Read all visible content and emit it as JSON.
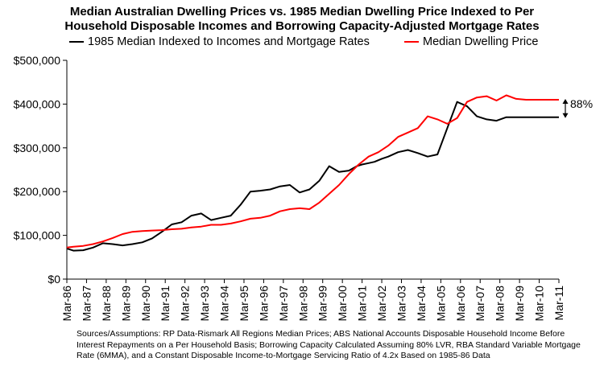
{
  "chart_data": {
    "type": "line",
    "title": "Median Australian Dwelling Prices vs. 1985 Median Dwelling Price Indexed to Per Household Disposable Incomes and Borrowing Capacity-Adjusted Mortgage Rates",
    "title_lines": [
      "Median Australian Dwelling Prices vs. 1985 Median Dwelling Price Indexed to Per",
      "Household Disposable Incomes and Borrowing Capacity-Adjusted Mortgage Rates"
    ],
    "xlabel": "",
    "ylabel": "",
    "ylim": [
      0,
      500000
    ],
    "xlim": [
      1986.17,
      2011.17
    ],
    "y_ticks": [
      0,
      100000,
      200000,
      300000,
      400000,
      500000
    ],
    "y_tick_labels": [
      "$0",
      "$100,000",
      "$200,000",
      "$300,000",
      "$400,000",
      "$500,000"
    ],
    "x_ticks": [
      1986.17,
      1987.17,
      1988.17,
      1989.17,
      1990.17,
      1991.17,
      1992.17,
      1993.17,
      1994.17,
      1995.17,
      1996.17,
      1997.17,
      1998.17,
      1999.17,
      2000.17,
      2001.17,
      2002.17,
      2003.17,
      2004.17,
      2005.17,
      2006.17,
      2007.17,
      2008.17,
      2009.17,
      2010.17,
      2011.17
    ],
    "x_tick_labels": [
      "Mar-86",
      "Mar-87",
      "Mar-88",
      "Mar-89",
      "Mar-90",
      "Mar-91",
      "Mar-92",
      "Mar-93",
      "Mar-94",
      "Mar-95",
      "Mar-96",
      "Mar-97",
      "Mar-98",
      "Mar-99",
      "Mar-00",
      "Mar-01",
      "Mar-02",
      "Mar-03",
      "Mar-04",
      "Mar-05",
      "Mar-06",
      "Mar-07",
      "Mar-08",
      "Mar-09",
      "Mar-10",
      "Mar-11"
    ],
    "grid": false,
    "legend_position": "top",
    "annotation": "88%",
    "series": [
      {
        "name": "1985 Median Indexed to Incomes and Mortgage Rates",
        "color": "#000000",
        "x": [
          1986.17,
          1986.5,
          1987.0,
          1987.5,
          1988.0,
          1988.5,
          1989.0,
          1989.5,
          1990.0,
          1990.5,
          1991.0,
          1991.5,
          1992.0,
          1992.5,
          1993.0,
          1993.5,
          1994.0,
          1994.5,
          1995.0,
          1995.5,
          1996.0,
          1996.5,
          1997.0,
          1997.5,
          1998.0,
          1998.5,
          1999.0,
          1999.5,
          2000.0,
          2000.5,
          2000.9,
          2001.17,
          2001.5,
          2001.8,
          2002.17,
          2002.5,
          2003.0,
          2003.5,
          2004.0,
          2004.5,
          2005.0,
          2005.5,
          2006.0,
          2006.5,
          2007.0,
          2007.5,
          2008.0,
          2008.5,
          2008.9,
          2009.17,
          2009.5,
          2009.8,
          2010.1,
          2010.5,
          2010.9,
          2011.17
        ],
        "values": [
          70000,
          65000,
          66000,
          72000,
          82000,
          80000,
          77000,
          80000,
          84000,
          93000,
          108000,
          125000,
          130000,
          145000,
          150000,
          135000,
          140000,
          145000,
          170000,
          200000,
          202000,
          205000,
          212000,
          215000,
          198000,
          205000,
          225000,
          258000,
          245000,
          248000,
          258000,
          262000,
          265000,
          268000,
          275000,
          280000,
          290000,
          295000,
          288000,
          280000,
          285000,
          345000,
          405000,
          395000,
          372000,
          365000,
          362000,
          370000,
          370000,
          370000,
          370000,
          370000,
          370000,
          370000,
          370000,
          370000
        ]
      },
      {
        "name": "Median Dwelling Price",
        "color": "#ff0000",
        "x": [
          1986.17,
          1986.5,
          1987.0,
          1987.5,
          1988.0,
          1988.5,
          1989.0,
          1989.5,
          1990.0,
          1990.5,
          1991.0,
          1991.5,
          1992.0,
          1992.5,
          1993.0,
          1993.5,
          1994.0,
          1994.5,
          1995.0,
          1995.5,
          1996.0,
          1996.5,
          1997.0,
          1997.5,
          1998.0,
          1998.5,
          1999.0,
          1999.5,
          2000.0,
          2000.5,
          2001.0,
          2001.5,
          2002.0,
          2002.5,
          2003.0,
          2003.5,
          2004.0,
          2004.5,
          2005.0,
          2005.5,
          2006.0,
          2006.5,
          2007.0,
          2007.5,
          2008.0,
          2008.5,
          2009.0,
          2009.5,
          2010.0,
          2010.3,
          2010.6,
          2010.9,
          2011.17
        ],
        "values": [
          72000,
          74000,
          76000,
          80000,
          86000,
          94000,
          103000,
          108000,
          110000,
          111000,
          112000,
          114000,
          115000,
          118000,
          120000,
          124000,
          124000,
          127000,
          132000,
          138000,
          140000,
          145000,
          155000,
          160000,
          162000,
          160000,
          175000,
          195000,
          215000,
          240000,
          262000,
          280000,
          290000,
          305000,
          325000,
          335000,
          345000,
          372000,
          365000,
          355000,
          368000,
          405000,
          415000,
          418000,
          408000,
          420000,
          412000,
          410000,
          410000,
          410000,
          410000,
          410000,
          410000
        ]
      }
    ]
  },
  "source_note": "Sources/Assumptions: RP Data-Rismark All Regions Median Prices; ABS National Accounts Disposable Household Income Before Interest Repayments on a Per Household Basis; Borrowing Capacity Calculated Assuming 80% LVR, RBA Standard Variable Mortgage Rate (6MMA), and a Constant Disposable Income-to-Mortgage Servicing Ratio of 4.2x Based on 1985-86 Data"
}
